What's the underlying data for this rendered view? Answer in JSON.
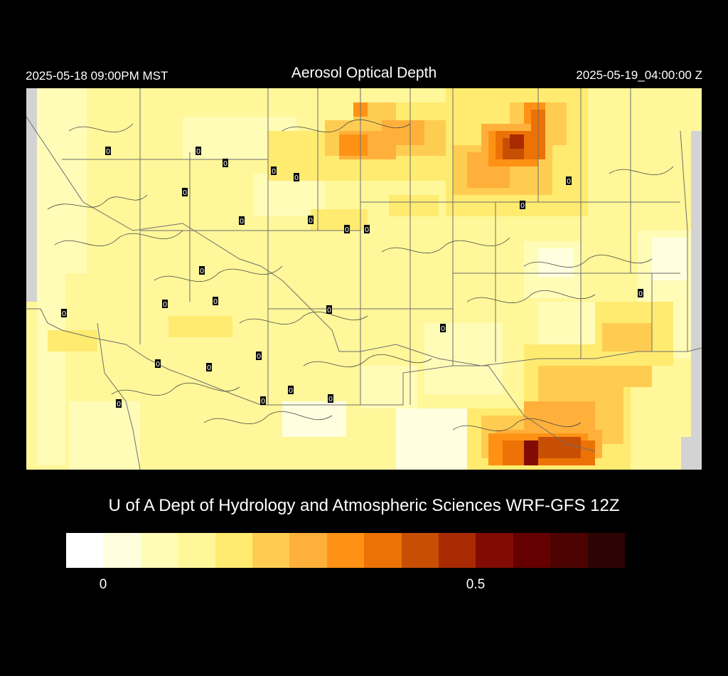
{
  "header": {
    "local_time": "2025-05-18 09:00PM MST",
    "title": "Aerosol Optical Depth",
    "utc_time": "2025-05-19_04:00:00 Z"
  },
  "credit": "U of A Dept of Hydrology and Atmospheric Sciences WRF-GFS 12Z",
  "colorbar": {
    "colors": [
      "#ffffff",
      "#ffffe0",
      "#fffcb8",
      "#fff799",
      "#ffeb70",
      "#ffcc52",
      "#ffb03a",
      "#ff9214",
      "#ec7206",
      "#c74f04",
      "#a92a02",
      "#820c04",
      "#660000",
      "#4d0202",
      "#2e0303"
    ],
    "tick_labels": [
      "0",
      "0.5"
    ]
  },
  "map": {
    "background": "#fff799",
    "station_marker": "0",
    "colors": {
      "light": "#ffffe0",
      "pale": "#fffcb8",
      "base": "#fff799",
      "mid": "#ffeb70",
      "warm": "#ffcc52",
      "orange": "#ffb03a",
      "deep_orange": "#ff9214",
      "burnt": "#ec7206",
      "rust": "#c74f04",
      "dark_red": "#a92a02",
      "maroon": "#820c04",
      "nodata": "#d3d3d3",
      "lines": "#555555"
    }
  }
}
